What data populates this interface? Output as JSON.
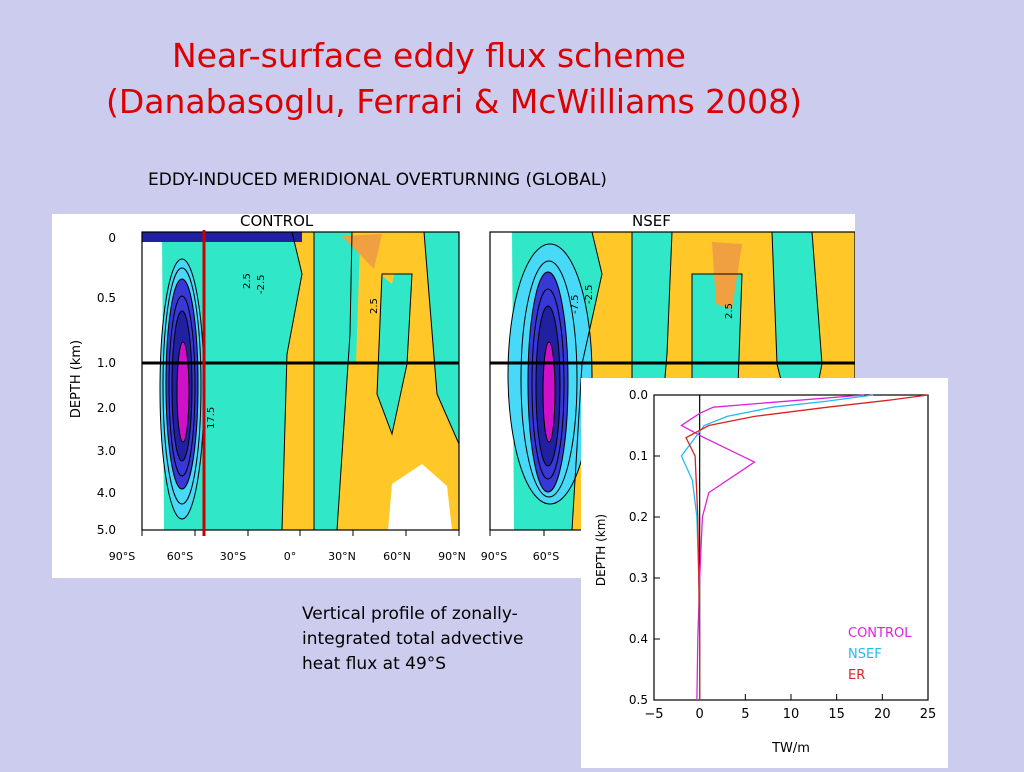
{
  "slide": {
    "title_line1": "Near-surface eddy flux scheme",
    "title_line2": "(Danabasoglu, Ferrari & McWilliams 2008)",
    "subtitle": "EDDY-INDUCED MERIDIONAL OVERTURNING (GLOBAL)",
    "caption_lines": [
      "Vertical profile of zonally-",
      "integrated total advective",
      "heat flux at 49°S"
    ]
  },
  "colors": {
    "title": "#dd0000",
    "background": "#ccccee",
    "fill_cyan": "#30e8c8",
    "fill_yellow": "#ffc828",
    "fill_orange": "#f0a040",
    "fill_lightblue": "#48d8f8",
    "fill_blue": "#3838d8",
    "fill_navy": "#2020a0",
    "fill_magenta": "#d010c8",
    "red_marker": "#cc0000"
  },
  "contour_panels": {
    "depth_axis_label": "DEPTH (km)",
    "y_ticks": [
      "0",
      "0.5",
      "1.0",
      "2.0",
      "3.0",
      "4.0",
      "5.0"
    ],
    "x_ticks": [
      "90°S",
      "60°S",
      "30°S",
      "0°",
      "30°N",
      "60°N",
      "90°N"
    ],
    "panels": [
      {
        "name": "CONTROL",
        "contour_labels": [
          "2.5",
          "2.5",
          "-2.5",
          "17.5"
        ]
      },
      {
        "name": "NSEF",
        "contour_labels": [
          "2.5",
          "-2.5",
          "-7.5"
        ]
      }
    ]
  },
  "chart_data": {
    "type": "line",
    "xlabel": "TW/m",
    "ylabel": "DEPTH (km)",
    "xlim": [
      -5,
      25
    ],
    "ylim": [
      0.5,
      0
    ],
    "x_ticks": [
      "−5",
      "0",
      "5",
      "10",
      "15",
      "20",
      "25"
    ],
    "y_ticks": [
      "0.0",
      "0.1",
      "0.2",
      "0.3",
      "0.4",
      "0.5"
    ],
    "legend_position": "bottom-right",
    "series": [
      {
        "name": "CONTROL",
        "color": "#dd22dd",
        "points": [
          [
            18,
            0
          ],
          [
            8,
            0.012
          ],
          [
            1.5,
            0.02
          ],
          [
            0,
            0.03
          ],
          [
            -2,
            0.05
          ],
          [
            0.5,
            0.07
          ],
          [
            6,
            0.11
          ],
          [
            1,
            0.16
          ],
          [
            0.3,
            0.2
          ],
          [
            0,
            0.3
          ],
          [
            -0.2,
            0.4
          ],
          [
            -0.3,
            0.5
          ]
        ]
      },
      {
        "name": "NSEF",
        "color": "#22bbee",
        "points": [
          [
            19,
            0
          ],
          [
            14,
            0.01
          ],
          [
            8,
            0.02
          ],
          [
            3,
            0.035
          ],
          [
            0.5,
            0.05
          ],
          [
            -2,
            0.1
          ],
          [
            -0.8,
            0.14
          ],
          [
            -0.3,
            0.2
          ],
          [
            -0.1,
            0.3
          ],
          [
            0,
            0.4
          ],
          [
            0,
            0.5
          ]
        ]
      },
      {
        "name": "ER",
        "color": "#dd2222",
        "points": [
          [
            25,
            0
          ],
          [
            21,
            0.008
          ],
          [
            14,
            0.02
          ],
          [
            6,
            0.035
          ],
          [
            1,
            0.05
          ],
          [
            -1.5,
            0.07
          ],
          [
            -0.5,
            0.1
          ],
          [
            -0.2,
            0.2
          ],
          [
            -0.1,
            0.3
          ],
          [
            0,
            0.4
          ],
          [
            0,
            0.5
          ]
        ]
      }
    ]
  }
}
